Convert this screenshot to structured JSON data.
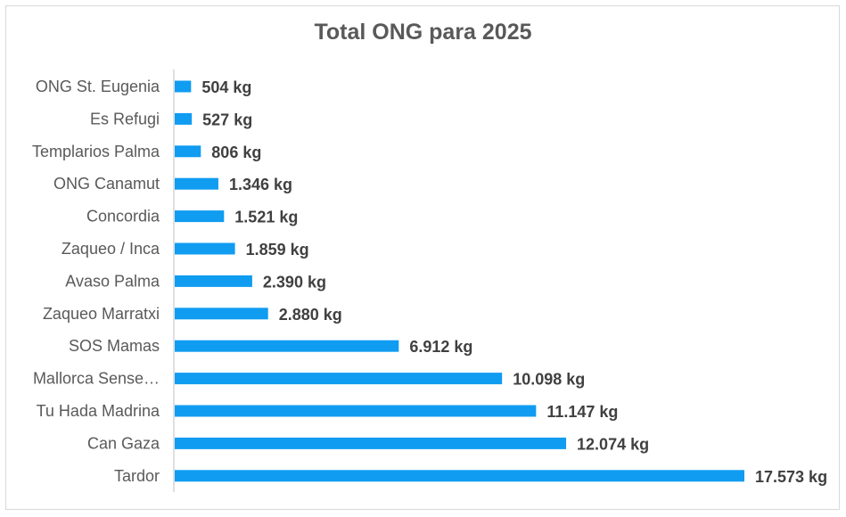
{
  "chart_data": {
    "type": "bar",
    "orientation": "horizontal",
    "title": "Total ONG para 2025",
    "xlabel": "",
    "ylabel": "",
    "unit": "kg",
    "xlim": [
      0,
      17573
    ],
    "grid": false,
    "legend": "none",
    "bar_color": "#109CF1",
    "categories": [
      "ONG St. Eugenia",
      "Es Refugi",
      "Templarios Palma",
      "ONG Canamut",
      "Concordia",
      "Zaqueo / Inca",
      "Avaso Palma",
      "Zaqueo Marratxi",
      "SOS Mamas",
      "Mallorca Sense…",
      "Tu Hada Madrina",
      "Can Gaza",
      "Tardor"
    ],
    "values": [
      504,
      527,
      806,
      1346,
      1521,
      1859,
      2390,
      2880,
      6912,
      10098,
      11147,
      12074,
      17573
    ],
    "data_labels": [
      "504 kg",
      "527 kg",
      "806 kg",
      "1.346 kg",
      "1.521 kg",
      "1.859 kg",
      "2.390 kg",
      "2.880 kg",
      "6.912 kg",
      "10.098 kg",
      "11.147 kg",
      "12.074 kg",
      "17.573 kg"
    ]
  }
}
